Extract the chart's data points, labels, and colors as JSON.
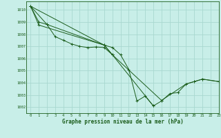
{
  "bg_color": "#c8eee8",
  "grid_color": "#a8d8d0",
  "line_color": "#1a5c1a",
  "marker_color": "#1a5c1a",
  "xlabel": "Graphe pression niveau de la mer (hPa)",
  "xlim": [
    -0.5,
    23
  ],
  "ylim": [
    1001.5,
    1010.7
  ],
  "yticks": [
    1002,
    1003,
    1004,
    1005,
    1006,
    1007,
    1008,
    1009,
    1010
  ],
  "xticks": [
    0,
    1,
    2,
    3,
    4,
    5,
    6,
    7,
    8,
    9,
    10,
    11,
    12,
    13,
    14,
    15,
    16,
    17,
    18,
    19,
    20,
    21,
    22,
    23
  ],
  "series": [
    [
      0,
      1010.3,
      1,
      1009.0,
      2,
      1008.8,
      3,
      1007.8,
      4,
      1007.5,
      5,
      1007.2,
      6,
      1007.0,
      7,
      1006.9,
      8,
      1006.95,
      9,
      1006.9,
      10,
      1006.3
    ],
    [
      0,
      1010.3,
      2,
      1008.8,
      9,
      1007.1,
      10,
      1006.9,
      11,
      1006.3,
      12,
      1005.1,
      13,
      1002.5,
      14,
      1002.9,
      15,
      1002.1,
      16,
      1002.5,
      17,
      1003.1,
      18,
      1003.2,
      19,
      1003.9,
      20,
      1004.1,
      21,
      1004.3,
      23,
      1004.1
    ],
    [
      0,
      1010.3,
      1,
      1008.75,
      9,
      1007.1,
      10,
      1006.3,
      15,
      1002.1
    ],
    [
      0,
      1010.3,
      9,
      1007.1,
      10,
      1006.3,
      16,
      1002.55,
      19,
      1003.9,
      20,
      1004.1,
      21,
      1004.3,
      23,
      1004.1
    ]
  ]
}
